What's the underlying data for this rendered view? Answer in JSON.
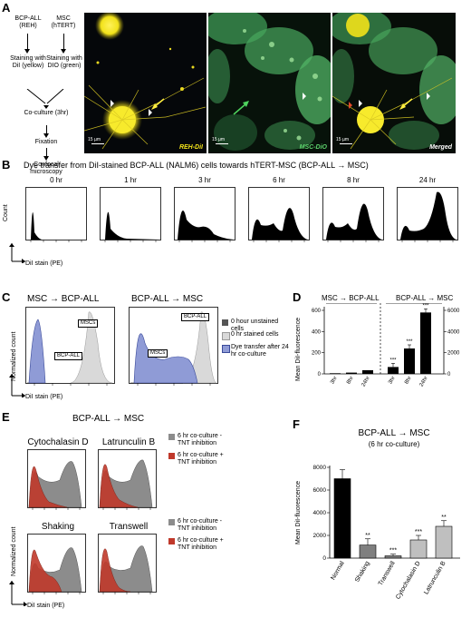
{
  "panelA": {
    "label": "A",
    "flow": {
      "col1_title": "BCP-ALL (REH)",
      "col1_stain": "Staining with DiI (yellow)",
      "col2_title": "MSC (hTERT)",
      "col2_stain": "Staining with DIO (green)",
      "coculture": "Co-culture (3hr)",
      "fixation": "Fixation",
      "microscopy": "Confocal microscopy"
    },
    "images": {
      "img1_label": "REH-DiI",
      "img2_label": "MSC-DiO",
      "img3_label": "Merged",
      "scalebar": "15 µm"
    }
  },
  "panelB": {
    "label": "B",
    "title": "Dye transfer from DiI-stained BCP-ALL (NALM6) cells towards hTERT-MSC  (BCP-ALL → MSC)",
    "timepoints": [
      "0 hr",
      "1 hr",
      "3 hr",
      "6 hr",
      "8 hr",
      "24 hr"
    ],
    "ylabel": "Count",
    "xlabel": "DiI stain (PE)"
  },
  "panelC": {
    "label": "C",
    "title1": "MSC → BCP-ALL",
    "title2": "BCP-ALL → MSC",
    "ylabel": "Normalized count",
    "xlabel": "DiI stain (PE)",
    "box_msc": "MSCs",
    "box_bcp": "BCP-ALL",
    "legend": [
      "0 hour unstained cells",
      "0 hr stained cells",
      "Dye transfer after 24 hr co-culture"
    ],
    "colors": {
      "unstained": "#555555",
      "stained": "#d9d9d9",
      "transfer": "#8f9bd6"
    }
  },
  "panelD": {
    "label": "D",
    "title1": "MSC → BCP-ALL",
    "title2": "BCP-ALL → MSC",
    "ylabel": "Mean DiI-fluorescence",
    "left_ticks": [
      "0",
      "200",
      "400",
      "600"
    ],
    "right_ticks": [
      "0",
      "2000",
      "4000",
      "6000"
    ],
    "categories": [
      "3hr",
      "8hr",
      "24hr",
      "3hr",
      "8hr",
      "24hr"
    ],
    "stars": [
      "***",
      "***",
      "***"
    ]
  },
  "panelE": {
    "label": "E",
    "title": "BCP-ALL → MSC",
    "plots": [
      "Cytochalasin D",
      "Latrunculin B",
      "Shaking",
      "Transwell"
    ],
    "legend_top": [
      "6 hr co-culture - TNT inhibition",
      "6 hr co-culture + TNT inhibition"
    ],
    "legend_bot": [
      "6 hr co-culture - TNT inhibition",
      "6 hr co-culture + TNT inhibition"
    ],
    "ylabel": "Normalized count",
    "xlabel": "DiI stain (PE)",
    "colors": {
      "control": "#8c8c8c",
      "inhibited": "#c0392b"
    }
  },
  "panelF": {
    "label": "F",
    "title": "BCP-ALL → MSC",
    "subtitle": "(6 hr co-culture)",
    "ylabel": "Mean DiI-fluorescence",
    "yticks": [
      "0",
      "2000",
      "4000",
      "6000",
      "8000"
    ],
    "stars": [
      "**",
      "***",
      "***",
      "**"
    ]
  },
  "chart_data": [
    {
      "type": "bar",
      "panel": "D",
      "ylabel": "Mean DiI-fluorescence",
      "series": [
        {
          "values": [
            6,
            12,
            35
          ]
        },
        {
          "values": [
            650,
            2400,
            5800
          ]
        }
      ],
      "categories": [
        "3hr",
        "8hr",
        "24hr"
      ],
      "ylim_left": [
        0,
        600
      ],
      "ylim_right": [
        0,
        6000
      ]
    },
    {
      "type": "bar",
      "panel": "F",
      "title": "BCP-ALL → MSC",
      "ylabel": "Mean DiI-fluorescence",
      "categories": [
        "Normal",
        "Shaking",
        "Transwell",
        "Cytochalasin D",
        "Latrunculin B"
      ],
      "values": [
        7000,
        1150,
        200,
        1600,
        2800
      ],
      "errors": [
        800,
        550,
        150,
        400,
        500
      ],
      "colors": [
        "#000000",
        "#7f7f7f",
        "#7f7f7f",
        "#bfbfbf",
        "#bfbfbf"
      ],
      "ylim": [
        0,
        8000
      ]
    }
  ]
}
